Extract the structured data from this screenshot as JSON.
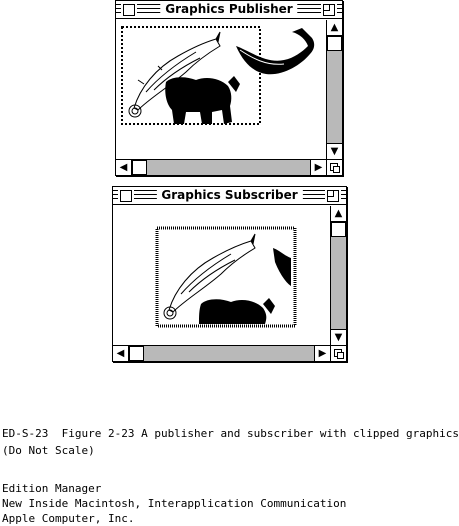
{
  "publisher_window": {
    "title": "Graphics Publisher"
  },
  "subscriber_window": {
    "title": "Graphics Subscriber"
  },
  "scroll_arrows": {
    "up": "▲",
    "down": "▼",
    "left": "◀",
    "right": "▶"
  },
  "caption": {
    "figure_line": "ED-S-23  Figure 2-23 A publisher and subscriber with clipped graphics",
    "scale_note": "(Do Not Scale)",
    "credit_1": "Edition Manager",
    "credit_2": "New Inside Macintosh, Interapplication Communication",
    "credit_3": "Apple Computer, Inc."
  }
}
